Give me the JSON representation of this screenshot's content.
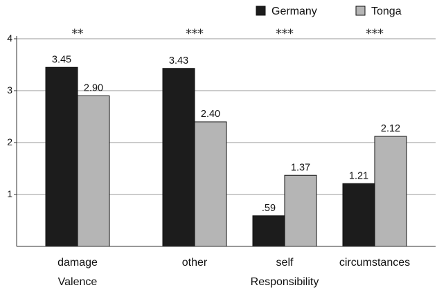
{
  "chart_data": {
    "type": "bar",
    "categories": [
      "damage",
      "other",
      "self",
      "circumstances"
    ],
    "group_labels": [
      "Valence",
      "Responsibility"
    ],
    "series": [
      {
        "name": "Germany",
        "color": "#1c1c1c",
        "values": [
          3.45,
          3.43,
          0.59,
          1.21
        ],
        "labels": [
          "3.45",
          "3.43",
          ".59",
          "1.21"
        ]
      },
      {
        "name": "Tonga",
        "color": "#b5b5b5",
        "values": [
          2.9,
          2.4,
          1.37,
          2.12
        ],
        "labels": [
          "2.90",
          "2.40",
          "1.37",
          "2.12"
        ]
      }
    ],
    "significance": [
      "**",
      "***",
      "***",
      "***"
    ],
    "ylim": [
      0,
      4
    ],
    "yticks": [
      1,
      2,
      3,
      4
    ],
    "grid": true,
    "legend": "top-right"
  }
}
